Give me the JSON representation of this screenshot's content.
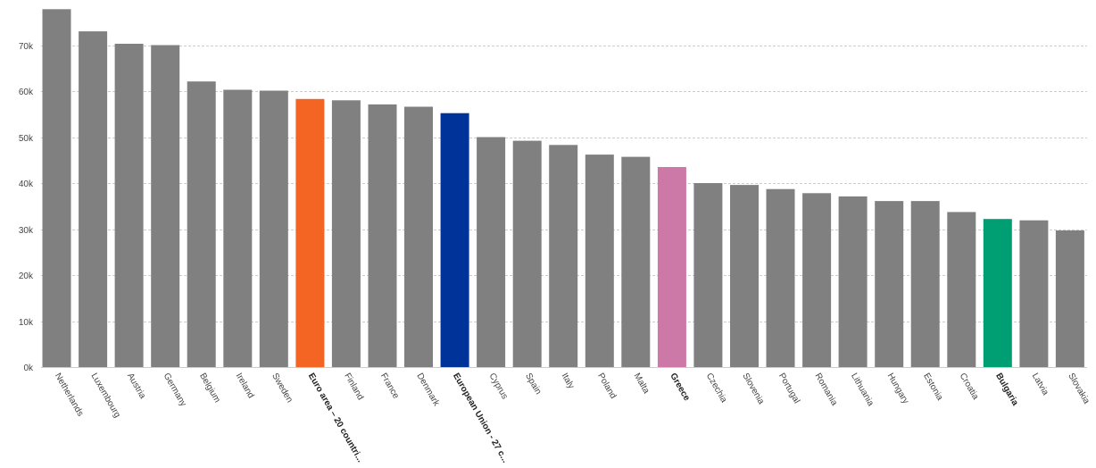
{
  "chart_data": {
    "type": "bar",
    "title": "",
    "xlabel": "",
    "ylabel": "",
    "ylim": [
      0,
      78000
    ],
    "yticks": [
      0,
      10000,
      20000,
      30000,
      40000,
      50000,
      60000,
      70000
    ],
    "ytick_labels": [
      "0k",
      "10k",
      "20k",
      "30k",
      "40k",
      "50k",
      "60k",
      "70k"
    ],
    "grid": true,
    "default_color": "#808080",
    "categories": [
      {
        "name": "Netherlands",
        "label": "Netherlands",
        "value": 77800,
        "color": "#808080",
        "bold": false
      },
      {
        "name": "Luxembourg",
        "label": "Luxembourg",
        "value": 73000,
        "color": "#808080",
        "bold": false
      },
      {
        "name": "Austria",
        "label": "Austria",
        "value": 70300,
        "color": "#808080",
        "bold": false
      },
      {
        "name": "Germany",
        "label": "Germany",
        "value": 70000,
        "color": "#808080",
        "bold": false
      },
      {
        "name": "Belgium",
        "label": "Belgium",
        "value": 62100,
        "color": "#808080",
        "bold": false
      },
      {
        "name": "Ireland",
        "label": "Ireland",
        "value": 60300,
        "color": "#808080",
        "bold": false
      },
      {
        "name": "Sweden",
        "label": "Sweden",
        "value": 60100,
        "color": "#808080",
        "bold": false
      },
      {
        "name": "Euro area – 20 countries",
        "label": "Euro area – 20 countri...",
        "value": 58300,
        "color": "#f46524",
        "bold": true
      },
      {
        "name": "Finland",
        "label": "Finland",
        "value": 58000,
        "color": "#808080",
        "bold": false
      },
      {
        "name": "France",
        "label": "France",
        "value": 57100,
        "color": "#808080",
        "bold": false
      },
      {
        "name": "Denmark",
        "label": "Denmark",
        "value": 56600,
        "color": "#808080",
        "bold": false
      },
      {
        "name": "European Union - 27 countries",
        "label": "European Union - 27 c...",
        "value": 55200,
        "color": "#003399",
        "bold": true
      },
      {
        "name": "Cyprus",
        "label": "Cyprus",
        "value": 50000,
        "color": "#808080",
        "bold": false
      },
      {
        "name": "Spain",
        "label": "Spain",
        "value": 49200,
        "color": "#808080",
        "bold": false
      },
      {
        "name": "Italy",
        "label": "Italy",
        "value": 48300,
        "color": "#808080",
        "bold": false
      },
      {
        "name": "Poland",
        "label": "Poland",
        "value": 46200,
        "color": "#808080",
        "bold": false
      },
      {
        "name": "Malta",
        "label": "Malta",
        "value": 45700,
        "color": "#808080",
        "bold": false
      },
      {
        "name": "Greece",
        "label": "Greece",
        "value": 43500,
        "color": "#cc79a7",
        "bold": true
      },
      {
        "name": "Czechia",
        "label": "Czechia",
        "value": 40000,
        "color": "#808080",
        "bold": false
      },
      {
        "name": "Slovenia",
        "label": "Slovenia",
        "value": 39600,
        "color": "#808080",
        "bold": false
      },
      {
        "name": "Portugal",
        "label": "Portugal",
        "value": 38700,
        "color": "#808080",
        "bold": false
      },
      {
        "name": "Romania",
        "label": "Romania",
        "value": 37800,
        "color": "#808080",
        "bold": false
      },
      {
        "name": "Lithuania",
        "label": "Lithuania",
        "value": 37100,
        "color": "#808080",
        "bold": false
      },
      {
        "name": "Hungary",
        "label": "Hungary",
        "value": 36100,
        "color": "#808080",
        "bold": false
      },
      {
        "name": "Estonia",
        "label": "Estonia",
        "value": 36100,
        "color": "#808080",
        "bold": false
      },
      {
        "name": "Croatia",
        "label": "Croatia",
        "value": 33700,
        "color": "#808080",
        "bold": false
      },
      {
        "name": "Bulgaria",
        "label": "Bulgaria",
        "value": 32200,
        "color": "#009e73",
        "bold": true
      },
      {
        "name": "Latvia",
        "label": "Latvia",
        "value": 31900,
        "color": "#808080",
        "bold": false
      },
      {
        "name": "Slovakia",
        "label": "Slovakia",
        "value": 29700,
        "color": "#808080",
        "bold": false
      }
    ]
  }
}
